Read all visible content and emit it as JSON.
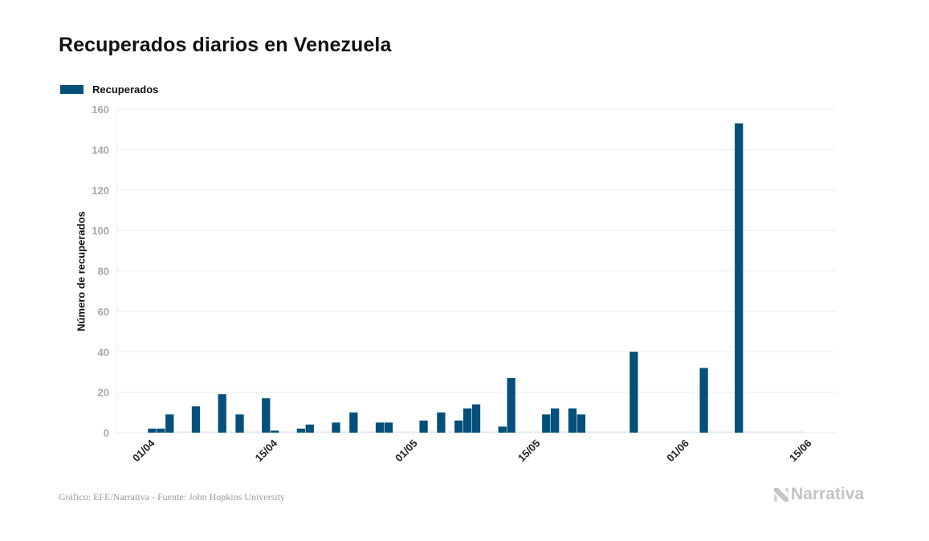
{
  "header": {
    "title": "Recuperados diarios en Venezuela"
  },
  "footer": {
    "credit": "Gráfico: EFE/Narrativa - Fuente: John Hopkins University",
    "logo_text": "Narrativa",
    "logo_icon": "narrativa-n-icon"
  },
  "colors": {
    "bar": "#04507a",
    "zero_tick": "#dfe6eb",
    "grid": "#ebebeb",
    "logo": "#c4c4c4"
  },
  "chart_data": {
    "type": "bar",
    "title": "Recuperados diarios en Venezuela",
    "xlabel": "",
    "ylabel": "Número de recuperados",
    "ylim": [
      0,
      160
    ],
    "yticks": [
      0,
      20,
      40,
      60,
      80,
      100,
      120,
      140,
      160
    ],
    "grid": true,
    "legend": {
      "position": "top-left",
      "entries": [
        "Recuperados"
      ]
    },
    "xtick_labels": [
      "01/04",
      "15/04",
      "01/05",
      "15/05",
      "01/06",
      "15/06"
    ],
    "xtick_index": [
      0,
      14,
      30,
      44,
      61,
      75
    ],
    "categories": [
      "01/04",
      "02/04",
      "03/04",
      "04/04",
      "05/04",
      "06/04",
      "07/04",
      "08/04",
      "09/04",
      "10/04",
      "11/04",
      "12/04",
      "13/04",
      "14/04",
      "15/04",
      "16/04",
      "17/04",
      "18/04",
      "19/04",
      "20/04",
      "21/04",
      "22/04",
      "23/04",
      "24/04",
      "25/04",
      "26/04",
      "27/04",
      "28/04",
      "29/04",
      "30/04",
      "01/05",
      "02/05",
      "03/05",
      "04/05",
      "05/05",
      "06/05",
      "07/05",
      "08/05",
      "09/05",
      "10/05",
      "11/05",
      "12/05",
      "13/05",
      "14/05",
      "15/05",
      "16/05",
      "17/05",
      "18/05",
      "19/05",
      "20/05",
      "21/05",
      "22/05",
      "23/05",
      "24/05",
      "25/05",
      "26/05",
      "27/05",
      "28/05",
      "29/05",
      "30/05",
      "31/05",
      "01/06",
      "02/06",
      "03/06",
      "04/06",
      "05/06",
      "06/06",
      "07/06",
      "08/06",
      "09/06",
      "10/06",
      "11/06",
      "12/06",
      "13/06",
      "14/06"
    ],
    "series": [
      {
        "name": "Recuperados",
        "values": [
          2,
          2,
          9,
          0,
          0,
          13,
          0,
          0,
          19,
          0,
          9,
          0,
          0,
          17,
          1,
          0,
          0,
          2,
          4,
          0,
          0,
          5,
          0,
          10,
          0,
          0,
          5,
          5,
          0,
          0,
          0,
          6,
          0,
          10,
          0,
          6,
          12,
          14,
          0,
          0,
          3,
          27,
          0,
          0,
          0,
          9,
          12,
          0,
          12,
          9,
          0,
          0,
          0,
          0,
          0,
          40,
          0,
          0,
          0,
          0,
          0,
          0,
          0,
          32,
          0,
          0,
          0,
          153,
          0,
          0,
          0,
          0,
          0,
          0,
          0
        ]
      }
    ]
  }
}
